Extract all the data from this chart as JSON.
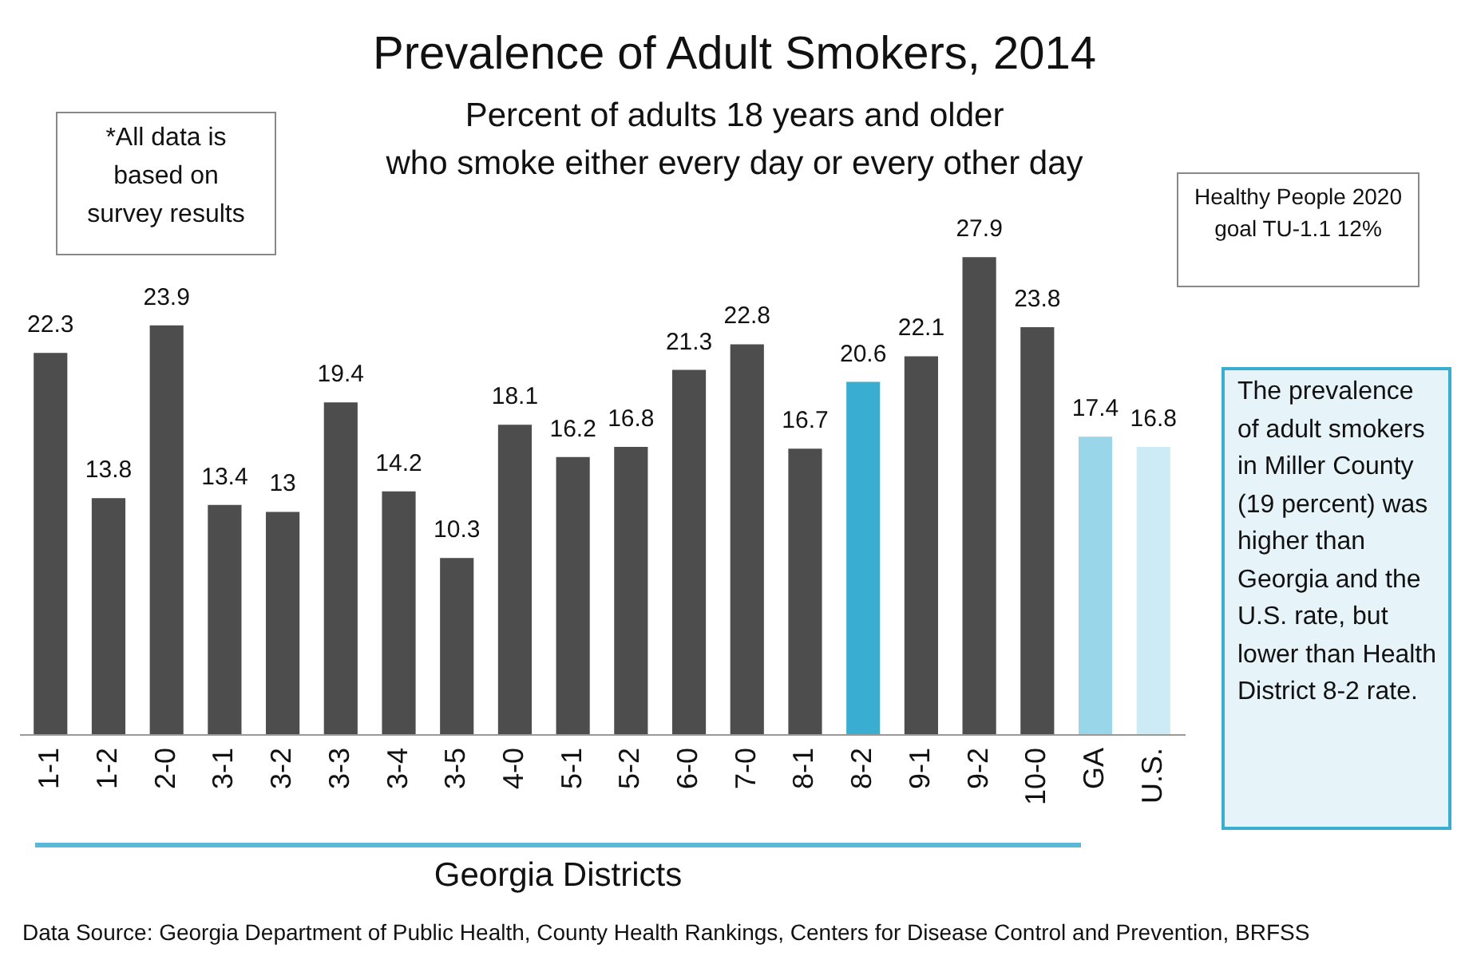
{
  "chart_data": {
    "type": "bar",
    "title": "Prevalence of Adult Smokers, 2014",
    "subtitle": "Percent of adults 18 years and older\nwho smoke either every day or every other day",
    "xlabel": "Georgia Districts",
    "categories": [
      "1-1",
      "1-2",
      "2-0",
      "3-1",
      "3-2",
      "3-3",
      "3-4",
      "3-5",
      "4-0",
      "5-1",
      "5-2",
      "6-0",
      "7-0",
      "8-1",
      "8-2",
      "9-1",
      "9-2",
      "10-0",
      "GA",
      "U.S."
    ],
    "values": [
      22.3,
      13.8,
      23.9,
      13.4,
      13,
      19.4,
      14.2,
      10.3,
      18.1,
      16.2,
      16.8,
      21.3,
      22.8,
      16.7,
      20.6,
      22.1,
      27.9,
      23.8,
      17.4,
      16.8
    ],
    "colors": [
      "#4d4d4d",
      "#4d4d4d",
      "#4d4d4d",
      "#4d4d4d",
      "#4d4d4d",
      "#4d4d4d",
      "#4d4d4d",
      "#4d4d4d",
      "#4d4d4d",
      "#4d4d4d",
      "#4d4d4d",
      "#4d4d4d",
      "#4d4d4d",
      "#4d4d4d",
      "#3aaed0",
      "#4d4d4d",
      "#4d4d4d",
      "#4d4d4d",
      "#9ad6ea",
      "#cdebf5"
    ],
    "data_labels": true,
    "annotations": [
      "*All data is based on survey results",
      "Healthy People 2020 goal  TU-1.1 12%",
      "The prevalence of adult smokers in Miller County (19 percent) was higher than Georgia and the U.S. rate, but lower than Health District 8-2 rate.",
      "Data Source: Georgia Department of Public Health, County Health Rankings, Centers for Disease Control and Prevention, BRFSS"
    ]
  }
}
